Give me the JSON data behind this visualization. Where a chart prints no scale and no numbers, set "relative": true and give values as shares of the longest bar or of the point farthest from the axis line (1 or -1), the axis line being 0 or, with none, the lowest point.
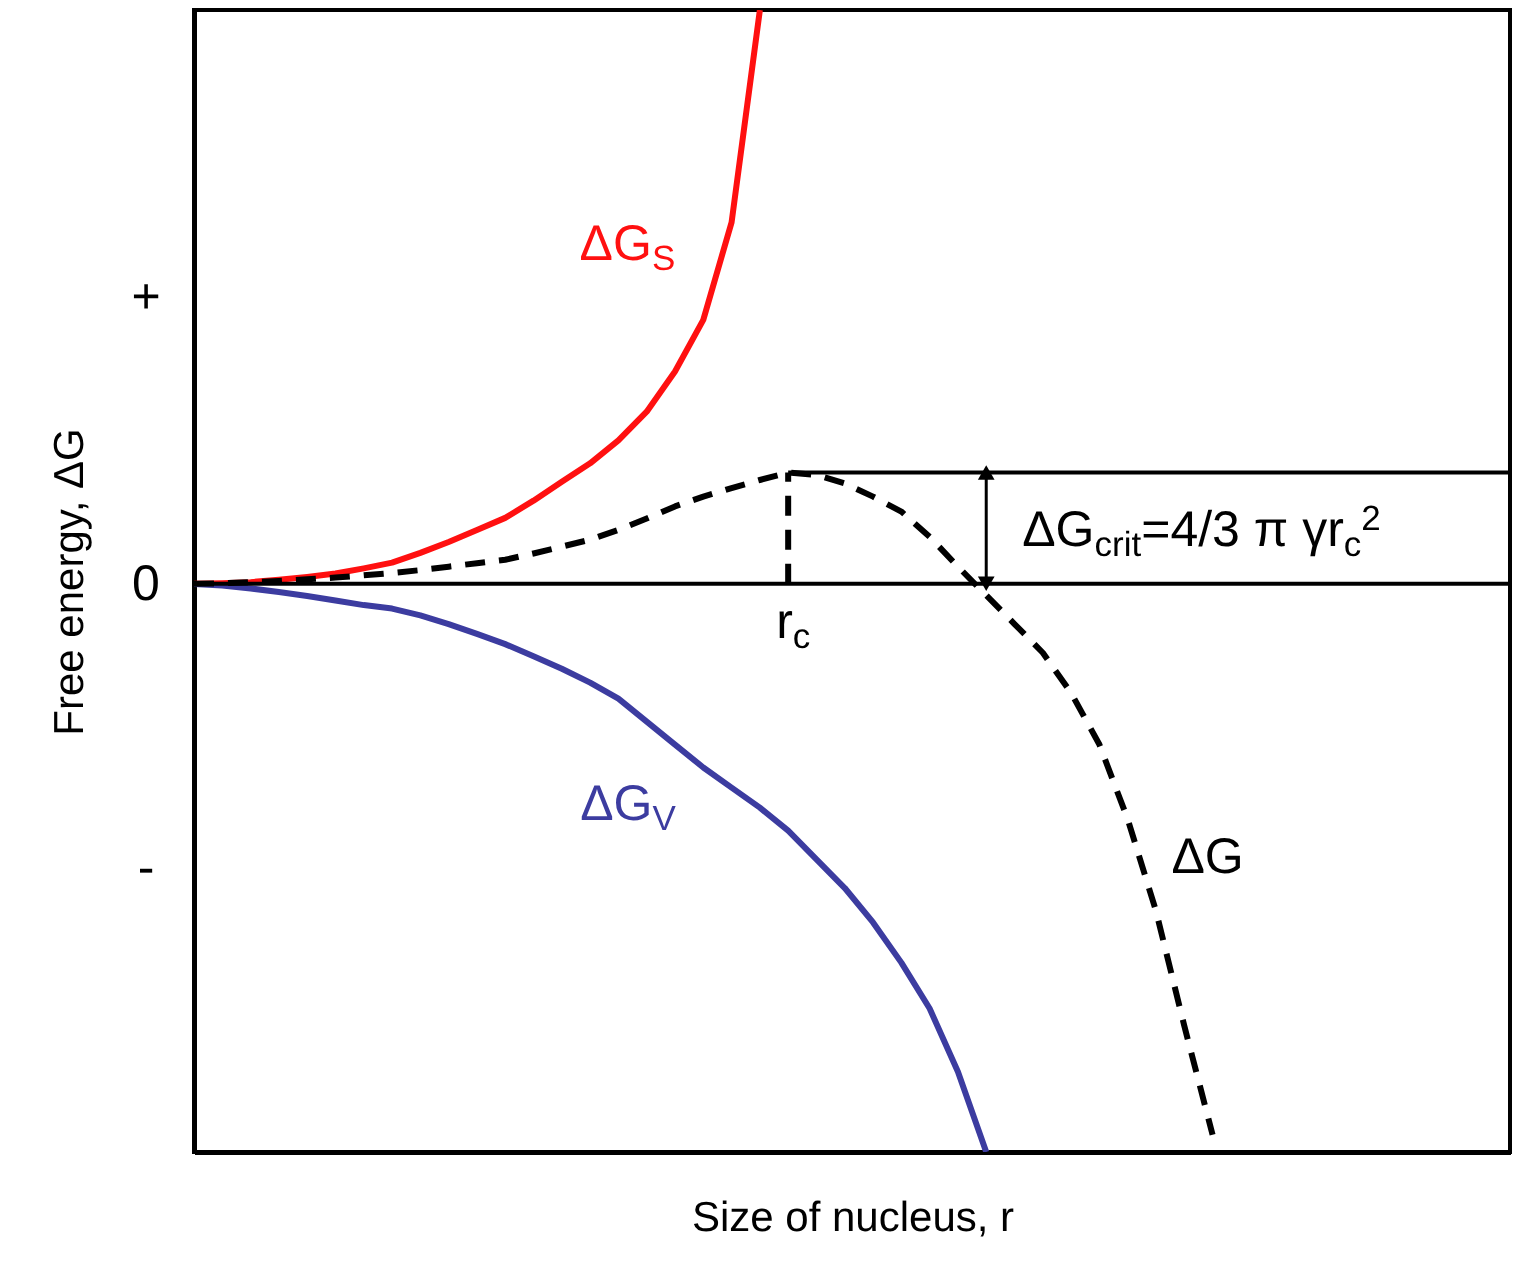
{
  "chart_data": {
    "type": "line",
    "xlabel": "Size of nucleus, r",
    "ylabel": "Free energy, ΔG",
    "relative": true,
    "categories": [
      null,
      null,
      null,
      null,
      null,
      null,
      null,
      null,
      null,
      null,
      null,
      null,
      null,
      null,
      null,
      null,
      null,
      null,
      null,
      null,
      null,
      null,
      null,
      null,
      null,
      null,
      null,
      null,
      null,
      null,
      null,
      null,
      null,
      null,
      null,
      null,
      null
    ],
    "series": [
      {
        "name": "ΔG$_{S}$",
        "color": "#ff1010",
        "values": [
          0,
          0.001,
          0.003,
          0.007,
          0.012,
          0.018,
          0.027,
          0.037,
          0.054,
          0.073,
          0.094,
          0.115,
          0.145,
          0.178,
          0.21,
          0.25,
          0.3,
          0.37,
          0.46,
          0.63,
          1.0,
          null,
          null,
          null,
          null,
          null,
          null,
          null,
          null,
          null,
          null,
          null,
          null,
          null,
          null,
          null,
          null
        ]
      },
      {
        "name": "ΔG$_{V}$",
        "color": "#3c3ca0",
        "values": [
          0,
          -0.003,
          -0.008,
          -0.014,
          -0.021,
          -0.029,
          -0.037,
          -0.043,
          -0.055,
          -0.07,
          -0.087,
          -0.105,
          -0.126,
          -0.148,
          -0.172,
          -0.2,
          -0.24,
          -0.28,
          -0.32,
          -0.355,
          -0.39,
          -0.43,
          -0.48,
          -0.53,
          -0.59,
          -0.66,
          -0.74,
          -0.85,
          -0.99,
          null,
          null,
          null,
          null,
          null,
          null,
          null,
          null
        ]
      },
      {
        "name": "ΔG",
        "color": "#000000",
        "line_style": "dashed",
        "values": [
          0,
          0.001,
          0.003,
          0.005,
          0.008,
          0.011,
          0.015,
          0.019,
          0.024,
          0.03,
          0.036,
          0.042,
          0.053,
          0.065,
          0.077,
          0.094,
          0.114,
          0.135,
          0.152,
          0.167,
          0.181,
          0.194,
          0.19,
          0.175,
          0.152,
          0.126,
          0.082,
          0.03,
          -0.02,
          -0.07,
          -0.12,
          -0.19,
          -0.28,
          -0.41,
          -0.57,
          -0.77,
          -0.96
        ]
      }
    ],
    "ref_lines": [
      {
        "axis": "y",
        "value": 0,
        "color": "#000000"
      },
      {
        "axis": "y",
        "value": 0.194,
        "color": "#000000"
      }
    ],
    "annotations": [
      "ΔG$_{crit}$=4/3 π γr$_{c}$$^{2}$",
      "r$_{c}$",
      "+",
      "0",
      "-"
    ]
  }
}
